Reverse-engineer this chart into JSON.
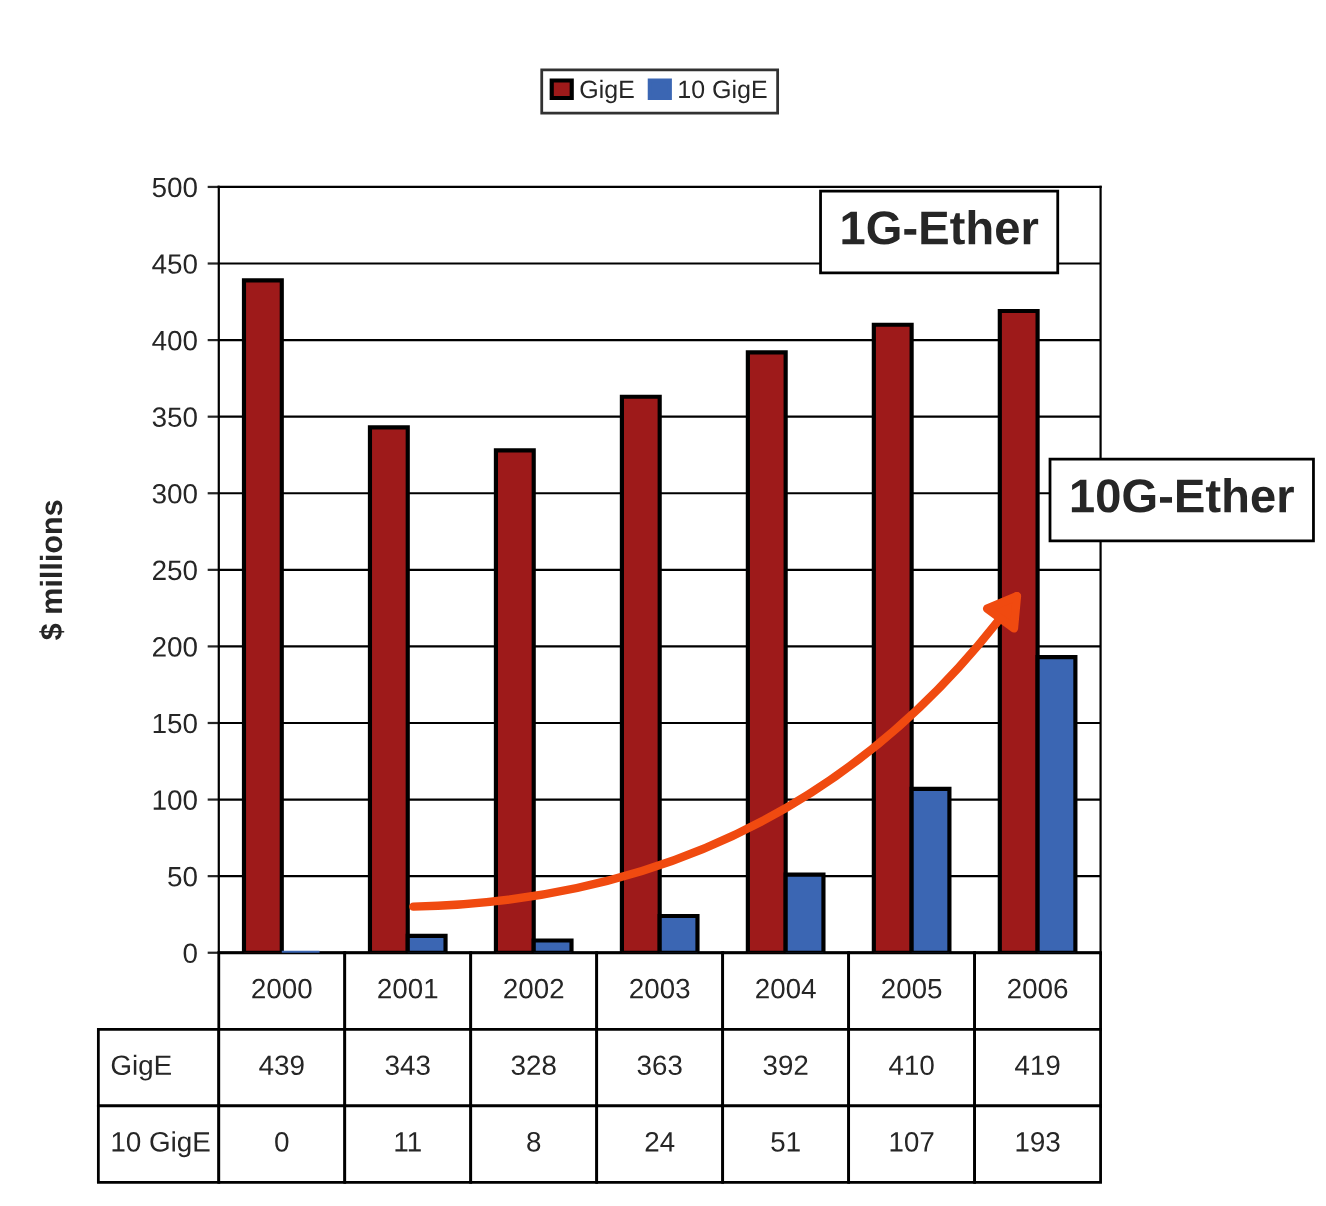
{
  "chart_data": {
    "type": "bar",
    "ylabel": "$ millions",
    "categories": [
      "2000",
      "2001",
      "2002",
      "2003",
      "2004",
      "2005",
      "2006"
    ],
    "series": [
      {
        "name": "GigE",
        "color": "#9e1a1a",
        "values": [
          439,
          343,
          328,
          363,
          392,
          410,
          419
        ]
      },
      {
        "name": "10 GigE",
        "color": "#3b66b3",
        "values": [
          0,
          11,
          8,
          24,
          51,
          107,
          193
        ]
      }
    ],
    "ylim": [
      0,
      500
    ],
    "yticks": [
      0,
      50,
      100,
      150,
      200,
      250,
      300,
      350,
      400,
      450,
      500
    ],
    "grid": "y",
    "legend": "top",
    "data_labels": true,
    "annotations": [
      "1G-Ether",
      "10G-Ether"
    ]
  }
}
